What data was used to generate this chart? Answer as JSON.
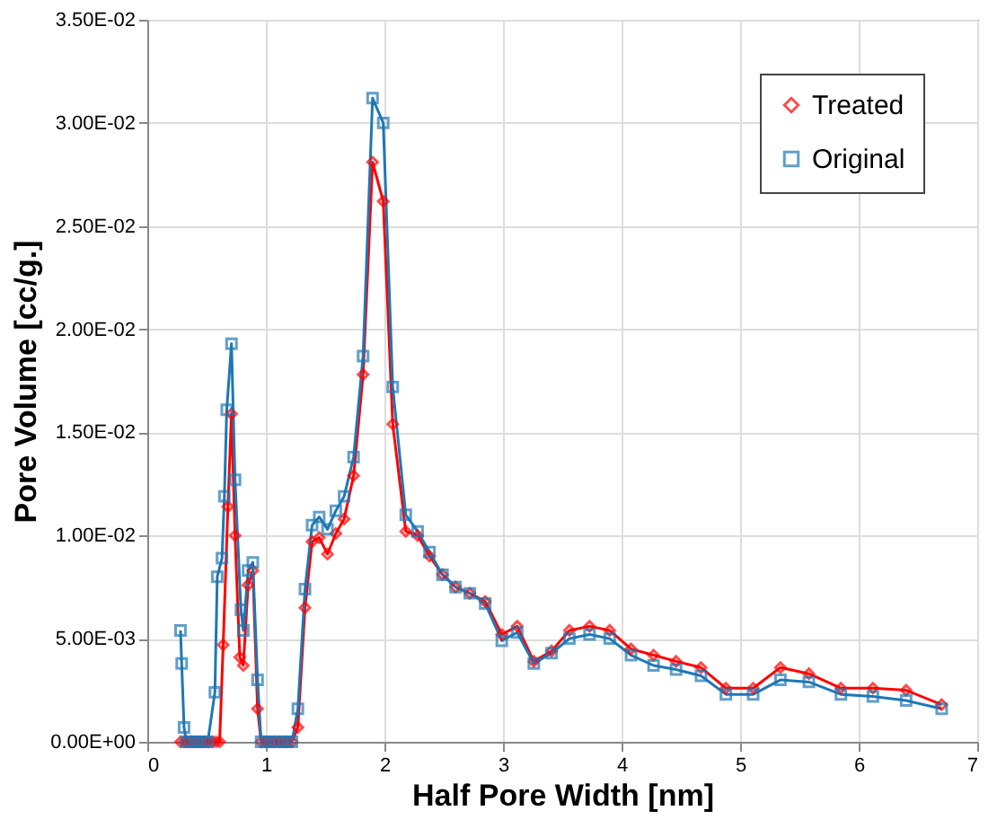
{
  "chart_data": {
    "type": "line",
    "xlabel": "Half Pore Width [nm]",
    "ylabel": "Pore Volume [cc/g.]",
    "xlim": [
      0,
      7
    ],
    "xticks": [
      0,
      1,
      2,
      3,
      4,
      5,
      6,
      7
    ],
    "ylim": [
      0,
      0.035
    ],
    "yticks": [
      {
        "value": 0,
        "label": "0.00E+00"
      },
      {
        "value": 0.005,
        "label": "5.00E-03"
      },
      {
        "value": 0.01,
        "label": "1.00E-02"
      },
      {
        "value": 0.015,
        "label": "1.50E-02"
      },
      {
        "value": 0.02,
        "label": "2.00E-02"
      },
      {
        "value": 0.025,
        "label": "2.50E-02"
      },
      {
        "value": 0.03,
        "label": "3.00E-02"
      },
      {
        "value": 0.035,
        "label": "3.50E-02"
      }
    ],
    "grid": true,
    "legend": "top right",
    "line_style": "solid",
    "series": [
      {
        "name": "Treated",
        "color": "#ff0000",
        "marker": "diamond",
        "x": [
          0.28,
          0.31,
          0.34,
          0.37,
          0.4,
          0.43,
          0.46,
          0.49,
          0.52,
          0.55,
          0.58,
          0.61,
          0.64,
          0.68,
          0.71,
          0.74,
          0.78,
          0.81,
          0.85,
          0.89,
          0.93,
          0.96,
          1.0,
          1.03,
          1.07,
          1.11,
          1.15,
          1.18,
          1.22,
          1.27,
          1.33,
          1.39,
          1.45,
          1.52,
          1.59,
          1.66,
          1.74,
          1.82,
          1.9,
          1.99,
          2.07,
          2.18,
          2.28,
          2.38,
          2.49,
          2.6,
          2.72,
          2.85,
          2.99,
          3.12,
          3.26,
          3.41,
          3.56,
          3.73,
          3.9,
          4.08,
          4.27,
          4.46,
          4.67,
          4.88,
          5.11,
          5.34,
          5.58,
          5.85,
          6.12,
          6.4,
          6.7
        ],
        "values": [
          0,
          0,
          0,
          0,
          0,
          0,
          0,
          0,
          0,
          0,
          0,
          0,
          0.0047,
          0.0114,
          0.0159,
          0.01,
          0.0041,
          0.0037,
          0.0076,
          0.0083,
          0.0016,
          0,
          0,
          0,
          0,
          0,
          0,
          0,
          0,
          0.0007,
          0.0065,
          0.0097,
          0.0099,
          0.0091,
          0.0101,
          0.0108,
          0.0129,
          0.0178,
          0.0281,
          0.0262,
          0.0154,
          0.0102,
          0.01,
          0.009,
          0.0081,
          0.0075,
          0.0072,
          0.0068,
          0.0052,
          0.0056,
          0.0039,
          0.0044,
          0.0054,
          0.0056,
          0.0054,
          0.0045,
          0.0042,
          0.0039,
          0.0036,
          0.0026,
          0.0026,
          0.0036,
          0.0033,
          0.0026,
          0.0026,
          0.0025,
          0.0018
        ]
      },
      {
        "name": "Original",
        "color": "#1f77b4",
        "marker": "square",
        "x": [
          0.28,
          0.29,
          0.31,
          0.33,
          0.36,
          0.39,
          0.42,
          0.45,
          0.48,
          0.51,
          0.57,
          0.59,
          0.63,
          0.65,
          0.67,
          0.71,
          0.74,
          0.79,
          0.81,
          0.85,
          0.89,
          0.93,
          0.96,
          1.0,
          1.03,
          1.07,
          1.11,
          1.15,
          1.18,
          1.22,
          1.27,
          1.33,
          1.39,
          1.45,
          1.52,
          1.59,
          1.66,
          1.74,
          1.82,
          1.9,
          1.99,
          2.07,
          2.18,
          2.28,
          2.38,
          2.49,
          2.6,
          2.72,
          2.85,
          2.99,
          3.12,
          3.26,
          3.41,
          3.56,
          3.73,
          3.9,
          4.08,
          4.27,
          4.46,
          4.67,
          4.88,
          5.11,
          5.34,
          5.58,
          5.85,
          6.12,
          6.4,
          6.7
        ],
        "values": [
          0.0054,
          0.0038,
          0.0007,
          0,
          0,
          0,
          0,
          0,
          0,
          0,
          0.0024,
          0.008,
          0.0089,
          0.0119,
          0.0161,
          0.0193,
          0.0127,
          0.0064,
          0.0054,
          0.0083,
          0.0087,
          0.003,
          0,
          0,
          0,
          0,
          0,
          0,
          0,
          0,
          0.0016,
          0.0074,
          0.0105,
          0.0109,
          0.0103,
          0.0112,
          0.0119,
          0.0138,
          0.0187,
          0.0312,
          0.03,
          0.0172,
          0.011,
          0.0102,
          0.0092,
          0.0081,
          0.0075,
          0.0072,
          0.0067,
          0.0049,
          0.0053,
          0.0038,
          0.0043,
          0.005,
          0.0052,
          0.005,
          0.0042,
          0.0037,
          0.0035,
          0.0032,
          0.0023,
          0.0023,
          0.003,
          0.0029,
          0.0023,
          0.0022,
          0.002,
          0.0016
        ]
      }
    ]
  }
}
